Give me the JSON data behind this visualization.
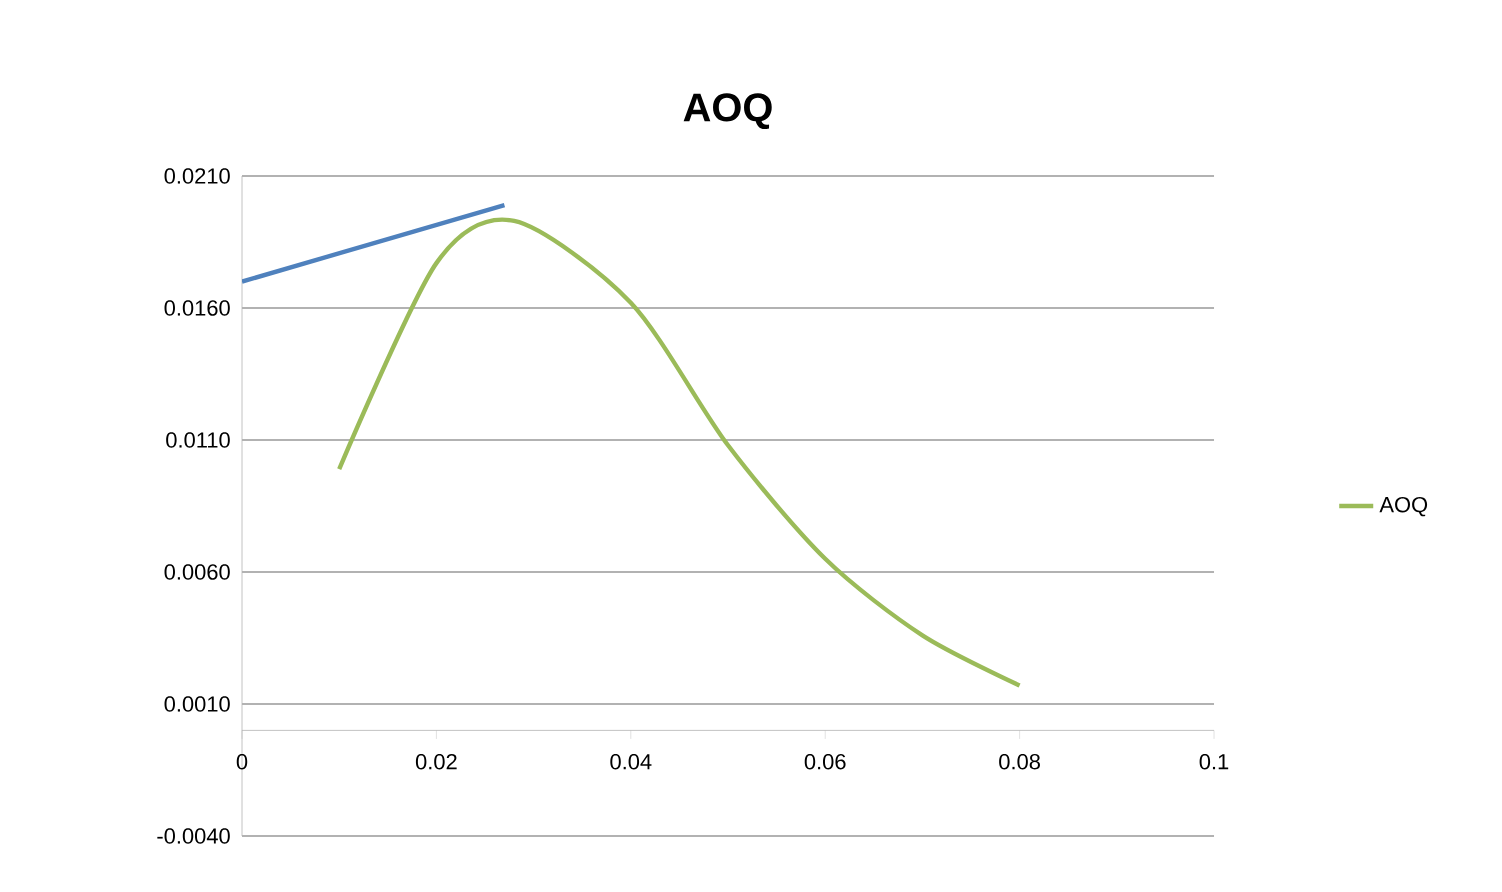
{
  "chart_data": {
    "type": "line",
    "title": "AOQ",
    "xlim": [
      0,
      0.1
    ],
    "xticks": [
      0,
      0.02,
      0.04,
      0.06,
      0.08,
      0.1
    ],
    "ylim": [
      -0.004,
      0.021
    ],
    "yticks": [
      {
        "value": -0.004,
        "label": "-0.0040"
      },
      {
        "value": 0.001,
        "label": "0.0010"
      },
      {
        "value": 0.006,
        "label": "0.0060"
      },
      {
        "value": 0.011,
        "label": "0.0110"
      },
      {
        "value": 0.016,
        "label": "0.0160"
      },
      {
        "value": 0.021,
        "label": "0.0210"
      }
    ],
    "grid": "y",
    "legend": "right",
    "series": [
      {
        "name": "AOQ",
        "color": "#9bbb59",
        "x": [
          0.01,
          0.02,
          0.028,
          0.04,
          0.05,
          0.06,
          0.07,
          0.08
        ],
        "values": [
          0.0099,
          0.0177,
          0.0193,
          0.0162,
          0.0108,
          0.0065,
          0.0036,
          0.0017
        ]
      },
      {
        "type": "line",
        "color": "#4f81bd",
        "x": [
          0,
          0.027
        ],
        "values": [
          0.017,
          0.0199
        ]
      }
    ]
  }
}
